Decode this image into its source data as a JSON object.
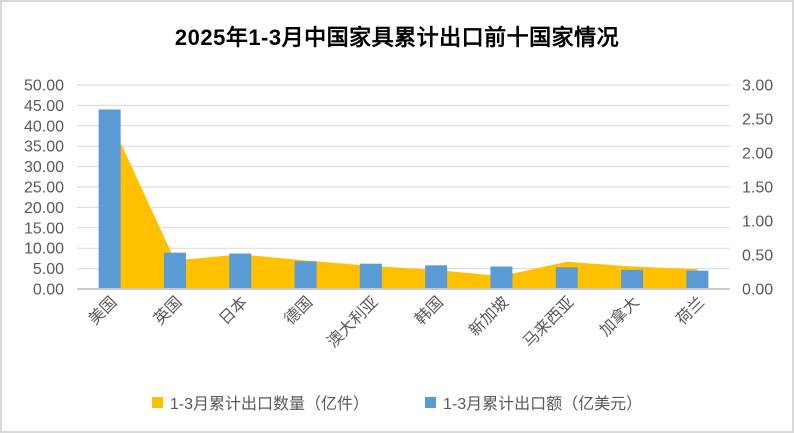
{
  "chart_data": {
    "type": "combo",
    "title": "2025年1-3月中国家具累计出口前十国家情况",
    "categories": [
      "美国",
      "英国",
      "日本",
      "德国",
      "澳大利亚",
      "韩国",
      "新加坡",
      "马来西亚",
      "加拿大",
      "荷兰"
    ],
    "series": [
      {
        "name": "1-3月累计出口数量（亿件）",
        "chart_type": "area",
        "axis": "right",
        "color": "#FFC000",
        "values": [
          2.5,
          0.42,
          0.51,
          0.42,
          0.34,
          0.28,
          0.19,
          0.4,
          0.33,
          0.29
        ]
      },
      {
        "name": "1-3月累计出口额（亿美元）",
        "chart_type": "bar",
        "axis": "left",
        "color": "#5B9BD5",
        "values": [
          44.0,
          8.9,
          8.7,
          6.8,
          6.2,
          5.8,
          5.5,
          5.3,
          4.7,
          4.5
        ]
      }
    ],
    "left_axis": {
      "min": 0,
      "max": 50,
      "step": 5,
      "ticks": [
        "0.00",
        "5.00",
        "10.00",
        "15.00",
        "20.00",
        "25.00",
        "30.00",
        "35.00",
        "40.00",
        "45.00",
        "50.00"
      ]
    },
    "right_axis": {
      "min": 0,
      "max": 3,
      "step": 0.5,
      "ticks": [
        "0.00",
        "0.50",
        "1.00",
        "1.50",
        "2.00",
        "2.50",
        "3.00"
      ]
    },
    "grid": true,
    "legend_position": "bottom",
    "colors": {
      "grid": "#D9D9D9",
      "axis_line": "#C8C8C8",
      "tick_label": "#595959",
      "title": "#000000",
      "background": "#FFFFFF",
      "frame_border": "#D9D9D9"
    }
  }
}
